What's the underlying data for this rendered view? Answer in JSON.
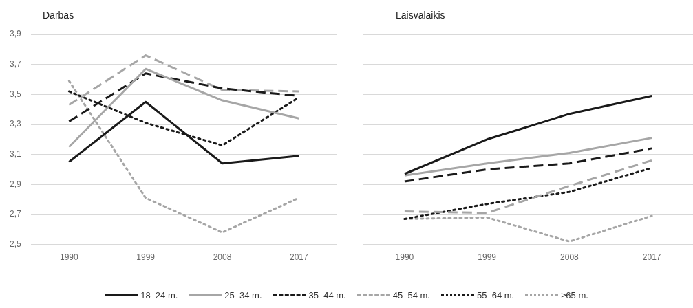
{
  "chart_data": [
    {
      "type": "line",
      "title": "Darbas",
      "categories": [
        "1990",
        "1999",
        "2008",
        "2017"
      ],
      "ylim": [
        2.5,
        3.9
      ],
      "yticks": [
        {
          "value": 2.5,
          "label": "2,5"
        },
        {
          "value": 2.7,
          "label": "2,7"
        },
        {
          "value": 2.9,
          "label": "2,9"
        },
        {
          "value": 3.1,
          "label": "3,1"
        },
        {
          "value": 3.3,
          "label": "3,3"
        },
        {
          "value": 3.5,
          "label": "3,5"
        },
        {
          "value": 3.7,
          "label": "3,7"
        },
        {
          "value": 3.9,
          "label": "3,9"
        }
      ],
      "grid": "y",
      "legend": "bottom",
      "marker": "none",
      "series": [
        {
          "name": "18–24 m.",
          "color": "#1a1a1a",
          "line_style": "solid",
          "values": [
            3.05,
            3.45,
            3.04,
            3.09
          ]
        },
        {
          "name": "25–34 m.",
          "color": "#a6a6a6",
          "line_style": "solid",
          "values": [
            3.15,
            3.67,
            3.46,
            3.34
          ]
        },
        {
          "name": "35–44 m.",
          "color": "#1a1a1a",
          "line_style": "dashed",
          "values": [
            3.32,
            3.64,
            3.54,
            3.49
          ]
        },
        {
          "name": "45–54 m.",
          "color": "#a6a6a6",
          "line_style": "dashed",
          "values": [
            3.43,
            3.76,
            3.53,
            3.52
          ]
        },
        {
          "name": "55–64 m.",
          "color": "#1a1a1a",
          "line_style": "dotted",
          "values": [
            3.52,
            3.31,
            3.16,
            3.48
          ]
        },
        {
          "name": "≥65 m.",
          "color": "#a6a6a6",
          "line_style": "dotted",
          "values": [
            3.59,
            2.81,
            2.58,
            2.81
          ]
        }
      ]
    },
    {
      "type": "line",
      "title": "Laisvalaikis",
      "categories": [
        "1990",
        "1999",
        "2008",
        "2017"
      ],
      "ylim": [
        2.5,
        3.9
      ],
      "yticks": [
        2.5,
        2.7,
        2.9,
        3.1,
        3.3,
        3.5,
        3.7,
        3.9
      ],
      "grid": "y",
      "tick_labels": "x",
      "marker": "none",
      "series": [
        {
          "color": "#1a1a1a",
          "line_style": "solid",
          "values": [
            2.97,
            3.2,
            3.37,
            3.49
          ]
        },
        {
          "color": "#a6a6a6",
          "line_style": "solid",
          "values": [
            2.96,
            3.04,
            3.11,
            3.21
          ]
        },
        {
          "color": "#1a1a1a",
          "line_style": "dashed",
          "values": [
            2.92,
            3.0,
            3.04,
            3.14
          ]
        },
        {
          "color": "#a6a6a6",
          "line_style": "dashed",
          "values": [
            2.72,
            2.71,
            2.89,
            3.06
          ]
        },
        {
          "color": "#1a1a1a",
          "line_style": "dotted",
          "values": [
            2.67,
            2.77,
            2.85,
            3.01
          ]
        },
        {
          "color": "#a6a6a6",
          "line_style": "dotted",
          "values": [
            2.67,
            2.68,
            2.52,
            2.69
          ]
        }
      ]
    }
  ]
}
